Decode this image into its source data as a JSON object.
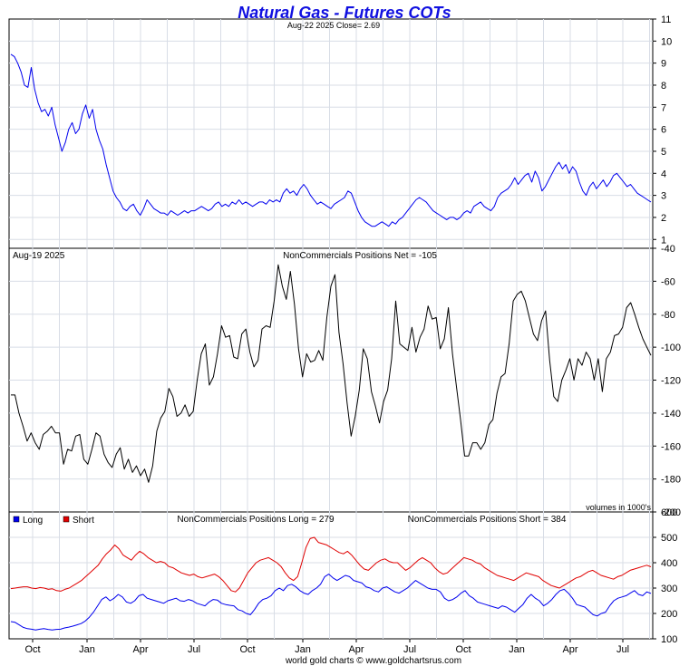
{
  "title": "Natural Gas - Futures COTs",
  "footer": "world gold charts © www.goldchartsrus.com",
  "colors": {
    "title": "#1010e0",
    "price": "#0000ee",
    "net": "#000000",
    "long": "#0000ee",
    "short": "#e00000"
  },
  "chart_data": [
    {
      "type": "line",
      "panel": "price",
      "subtitle": "Aug-22  2025   Close= 2.69",
      "ylim": [
        0.6,
        11
      ],
      "yticks": [
        1,
        2,
        3,
        4,
        5,
        6,
        7,
        8,
        9,
        10,
        11
      ],
      "x_ticks": [
        "Oct",
        "Jan",
        "Apr",
        "Jul",
        "Oct",
        "Jan",
        "Apr",
        "Jul",
        "Oct",
        "Jan",
        "Apr",
        "Jul"
      ],
      "grid": true,
      "series": [
        {
          "values": [
            9.4,
            9.3,
            9.0,
            8.6,
            8.0,
            7.9,
            8.8,
            7.8,
            7.2,
            6.8,
            6.9,
            6.6,
            7.0,
            6.2,
            5.6,
            5.0,
            5.4,
            6.0,
            6.3,
            5.8,
            6.0,
            6.7,
            7.1,
            6.5,
            6.9,
            6.0,
            5.5,
            5.1,
            4.4,
            3.8,
            3.2,
            2.9,
            2.7,
            2.4,
            2.3,
            2.5,
            2.6,
            2.3,
            2.1,
            2.4,
            2.8,
            2.6,
            2.4,
            2.3,
            2.2,
            2.2,
            2.1,
            2.3,
            2.2,
            2.1,
            2.2,
            2.3,
            2.2,
            2.3,
            2.3,
            2.4,
            2.5,
            2.4,
            2.3,
            2.4,
            2.6,
            2.7,
            2.5,
            2.6,
            2.5,
            2.7,
            2.6,
            2.8,
            2.6,
            2.7,
            2.6,
            2.5,
            2.6,
            2.7,
            2.7,
            2.6,
            2.8,
            2.7,
            2.8,
            2.7,
            3.1,
            3.3,
            3.1,
            3.2,
            3.0,
            3.3,
            3.5,
            3.3,
            3.0,
            2.8,
            2.6,
            2.7,
            2.6,
            2.5,
            2.4,
            2.6,
            2.7,
            2.8,
            2.9,
            3.2,
            3.1,
            2.7,
            2.3,
            2.0,
            1.8,
            1.7,
            1.6,
            1.6,
            1.7,
            1.8,
            1.7,
            1.6,
            1.8,
            1.7,
            1.9,
            2.0,
            2.2,
            2.4,
            2.6,
            2.8,
            2.9,
            2.8,
            2.7,
            2.5,
            2.3,
            2.2,
            2.1,
            2.0,
            1.9,
            2.0,
            2.0,
            1.9,
            2.0,
            2.2,
            2.3,
            2.2,
            2.5,
            2.6,
            2.7,
            2.5,
            2.4,
            2.3,
            2.5,
            2.9,
            3.1,
            3.2,
            3.3,
            3.5,
            3.8,
            3.5,
            3.7,
            3.9,
            4.0,
            3.6,
            4.1,
            3.8,
            3.2,
            3.4,
            3.7,
            4.0,
            4.3,
            4.5,
            4.2,
            4.4,
            4.0,
            4.3,
            4.1,
            3.6,
            3.2,
            3.0,
            3.4,
            3.6,
            3.3,
            3.5,
            3.7,
            3.4,
            3.6,
            3.9,
            4.0,
            3.8,
            3.6,
            3.4,
            3.5,
            3.3,
            3.1,
            3.0,
            2.9,
            2.8,
            2.7
          ]
        }
      ]
    },
    {
      "type": "line",
      "panel": "net",
      "date_label": "Aug-19  2025",
      "subtitle": "NonCommercials Positions Net = -105",
      "volume_note": "volumes in 1000's",
      "ylim": [
        -200,
        -40
      ],
      "yticks": [
        -40,
        -60,
        -80,
        -100,
        -120,
        -140,
        -160,
        -180,
        -200
      ],
      "grid": true,
      "series": [
        {
          "values": [
            -129,
            -129,
            -140,
            -148,
            -157,
            -152,
            -158,
            -162,
            -153,
            -151,
            -148,
            -152,
            -152,
            -171,
            -162,
            -163,
            -154,
            -153,
            -168,
            -171,
            -162,
            -152,
            -154,
            -165,
            -170,
            -173,
            -165,
            -161,
            -174,
            -168,
            -176,
            -172,
            -178,
            -174,
            -182,
            -172,
            -151,
            -143,
            -139,
            -125,
            -130,
            -142,
            -140,
            -135,
            -142,
            -139,
            -120,
            -104,
            -98,
            -123,
            -118,
            -104,
            -87,
            -94,
            -93,
            -106,
            -107,
            -92,
            -89,
            -103,
            -112,
            -108,
            -89,
            -87,
            -88,
            -72,
            -50,
            -63,
            -71,
            -54,
            -74,
            -101,
            -118,
            -104,
            -109,
            -108,
            -102,
            -108,
            -82,
            -63,
            -56,
            -91,
            -110,
            -134,
            -154,
            -142,
            -126,
            -101,
            -107,
            -127,
            -136,
            -146,
            -133,
            -126,
            -107,
            -72,
            -98,
            -100,
            -102,
            -88,
            -103,
            -94,
            -89,
            -75,
            -83,
            -82,
            -101,
            -95,
            -76,
            -104,
            -124,
            -144,
            -166,
            -166,
            -158,
            -158,
            -162,
            -158,
            -147,
            -144,
            -128,
            -118,
            -116,
            -98,
            -72,
            -68,
            -66,
            -72,
            -82,
            -92,
            -96,
            -84,
            -78,
            -108,
            -130,
            -133,
            -120,
            -114,
            -107,
            -120,
            -107,
            -111,
            -103,
            -107,
            -120,
            -107,
            -127,
            -107,
            -103,
            -93,
            -92,
            -88,
            -76,
            -73,
            -80,
            -88,
            -95,
            -100,
            -105
          ]
        }
      ]
    },
    {
      "type": "line",
      "panel": "long-short",
      "subtitle_long": "NonCommercials Positions Long = 279",
      "subtitle_short": "NonCommercials Positions Short = 384",
      "ylim": [
        100,
        600
      ],
      "yticks": [
        100,
        200,
        300,
        400,
        500,
        600
      ],
      "grid": true,
      "x_ticks": [
        "Oct",
        "Jan",
        "Apr",
        "Jul",
        "Oct",
        "Jan",
        "Apr",
        "Jul",
        "Oct",
        "Jan",
        "Apr",
        "Jul"
      ],
      "series": [
        {
          "name": "Long",
          "values": [
            168,
            165,
            155,
            145,
            140,
            138,
            135,
            138,
            140,
            137,
            135,
            137,
            138,
            143,
            146,
            150,
            155,
            160,
            170,
            185,
            205,
            230,
            255,
            265,
            250,
            260,
            275,
            265,
            245,
            240,
            250,
            270,
            275,
            260,
            255,
            250,
            245,
            240,
            250,
            255,
            260,
            250,
            248,
            255,
            250,
            240,
            235,
            230,
            245,
            255,
            253,
            240,
            235,
            232,
            230,
            215,
            210,
            200,
            195,
            215,
            240,
            255,
            260,
            270,
            290,
            300,
            290,
            310,
            315,
            305,
            290,
            280,
            275,
            290,
            300,
            315,
            345,
            355,
            340,
            330,
            340,
            350,
            345,
            330,
            325,
            320,
            305,
            300,
            290,
            285,
            300,
            305,
            295,
            285,
            280,
            290,
            300,
            315,
            330,
            320,
            310,
            300,
            295,
            295,
            285,
            260,
            250,
            255,
            265,
            280,
            290,
            270,
            260,
            245,
            240,
            235,
            230,
            225,
            220,
            230,
            225,
            215,
            205,
            220,
            235,
            260,
            275,
            260,
            250,
            230,
            240,
            255,
            275,
            290,
            295,
            280,
            260,
            235,
            230,
            225,
            210,
            195,
            190,
            200,
            205,
            230,
            250,
            260,
            265,
            270,
            280,
            290,
            275,
            270,
            285,
            279
          ]
        },
        {
          "name": "Short",
          "values": [
            298,
            300,
            303,
            305,
            305,
            300,
            298,
            302,
            300,
            295,
            297,
            290,
            288,
            295,
            300,
            310,
            320,
            330,
            345,
            360,
            375,
            390,
            415,
            435,
            450,
            470,
            455,
            430,
            420,
            410,
            430,
            445,
            435,
            420,
            410,
            400,
            405,
            400,
            385,
            380,
            370,
            360,
            355,
            350,
            355,
            345,
            340,
            345,
            350,
            355,
            345,
            330,
            310,
            290,
            285,
            300,
            330,
            360,
            380,
            400,
            410,
            415,
            420,
            410,
            400,
            385,
            360,
            340,
            330,
            345,
            400,
            460,
            495,
            500,
            480,
            475,
            470,
            460,
            450,
            440,
            435,
            445,
            430,
            410,
            390,
            375,
            370,
            385,
            400,
            410,
            415,
            405,
            400,
            400,
            385,
            370,
            380,
            395,
            410,
            420,
            410,
            400,
            380,
            365,
            355,
            360,
            375,
            390,
            405,
            420,
            415,
            410,
            400,
            395,
            380,
            370,
            360,
            350,
            345,
            340,
            335,
            330,
            340,
            350,
            360,
            355,
            350,
            345,
            330,
            320,
            310,
            305,
            300,
            310,
            320,
            330,
            340,
            345,
            355,
            365,
            370,
            360,
            350,
            345,
            340,
            335,
            345,
            350,
            360,
            370,
            375,
            380,
            385,
            390,
            384
          ]
        }
      ]
    }
  ]
}
